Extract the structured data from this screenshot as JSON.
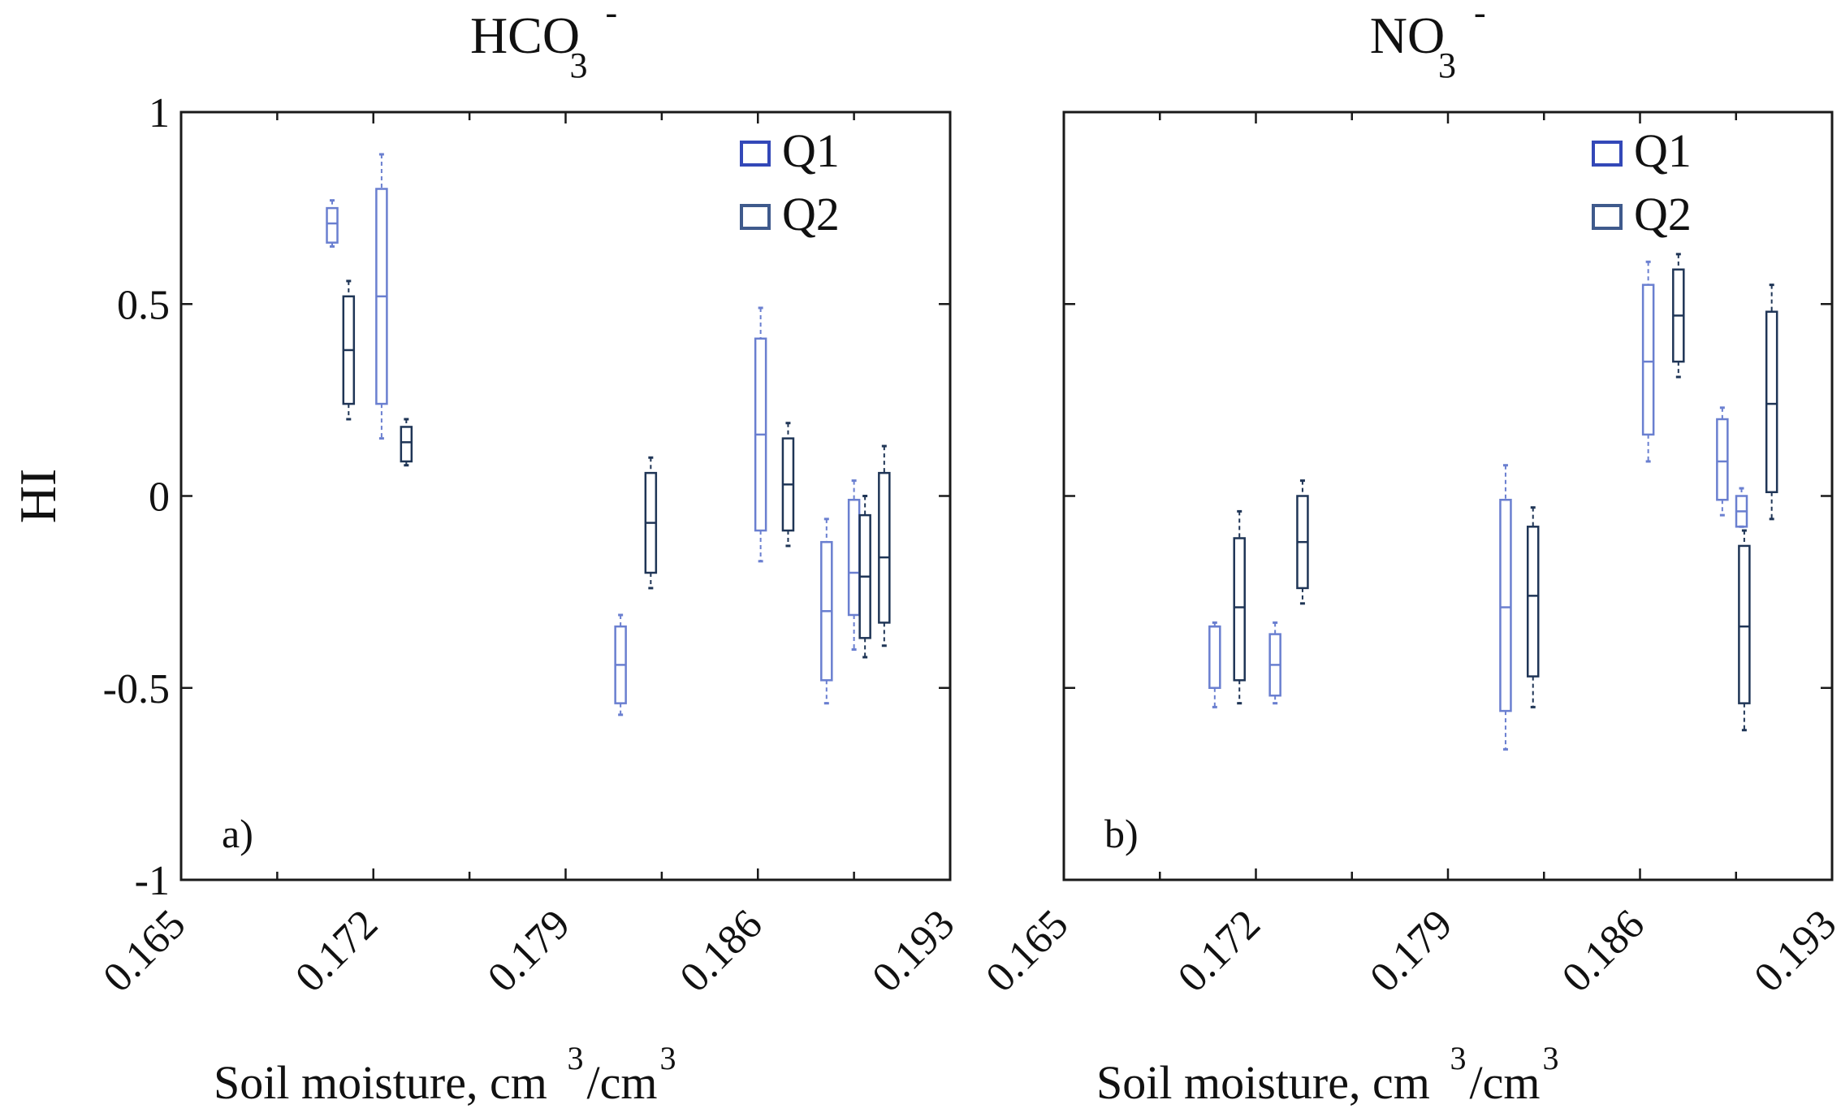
{
  "colors": {
    "Q1": "#6a7fd0",
    "Q2": "#1f3556",
    "axis": "#1a1a1a"
  },
  "chart_data": [
    {
      "type": "box",
      "panel_label": "a)",
      "title": {
        "main": "HCO",
        "sub": "3",
        "sup": "-"
      },
      "xlabel": {
        "text": "Soil moisture, cm",
        "sup1": "3",
        "mid": "/cm",
        "sup2": "3"
      },
      "ylabel": "HI",
      "xlim": [
        0.165,
        0.193
      ],
      "ylim": [
        -1,
        1
      ],
      "xticks": [
        "0.165",
        "0.172",
        "0.179",
        "0.186",
        "0.193"
      ],
      "yticks": [
        "1",
        "0.5",
        "0",
        "-0.5",
        "-1"
      ],
      "legend": [
        "Q1",
        "Q2"
      ],
      "boxes": [
        {
          "series": "Q1",
          "x": 0.1705,
          "whislo": 0.65,
          "q1": 0.66,
          "med": 0.71,
          "q3": 0.75,
          "whishi": 0.77
        },
        {
          "series": "Q2",
          "x": 0.1711,
          "whislo": 0.2,
          "q1": 0.24,
          "med": 0.38,
          "q3": 0.52,
          "whishi": 0.56
        },
        {
          "series": "Q1",
          "x": 0.1723,
          "whislo": 0.15,
          "q1": 0.24,
          "med": 0.52,
          "q3": 0.8,
          "whishi": 0.89
        },
        {
          "series": "Q2",
          "x": 0.1732,
          "whislo": 0.08,
          "q1": 0.09,
          "med": 0.14,
          "q3": 0.18,
          "whishi": 0.2
        },
        {
          "series": "Q1",
          "x": 0.181,
          "whislo": -0.57,
          "q1": -0.54,
          "med": -0.44,
          "q3": -0.34,
          "whishi": -0.31
        },
        {
          "series": "Q2",
          "x": 0.1821,
          "whislo": -0.24,
          "q1": -0.2,
          "med": -0.07,
          "q3": 0.06,
          "whishi": 0.1
        },
        {
          "series": "Q1",
          "x": 0.1861,
          "whislo": -0.17,
          "q1": -0.09,
          "med": 0.16,
          "q3": 0.41,
          "whishi": 0.49
        },
        {
          "series": "Q2",
          "x": 0.1871,
          "whislo": -0.13,
          "q1": -0.09,
          "med": 0.03,
          "q3": 0.15,
          "whishi": 0.19
        },
        {
          "series": "Q1",
          "x": 0.1885,
          "whislo": -0.54,
          "q1": -0.48,
          "med": -0.3,
          "q3": -0.12,
          "whishi": -0.06
        },
        {
          "series": "Q1",
          "x": 0.1895,
          "whislo": -0.4,
          "q1": -0.31,
          "med": -0.2,
          "q3": -0.01,
          "whishi": 0.04
        },
        {
          "series": "Q2",
          "x": 0.1899,
          "whislo": -0.42,
          "q1": -0.37,
          "med": -0.21,
          "q3": -0.05,
          "whishi": 0.0
        },
        {
          "series": "Q2",
          "x": 0.1906,
          "whislo": -0.39,
          "q1": -0.33,
          "med": -0.16,
          "q3": 0.06,
          "whishi": 0.13
        }
      ]
    },
    {
      "type": "box",
      "panel_label": "b)",
      "title": {
        "main": "NO",
        "sub": "3",
        "sup": "-"
      },
      "xlabel": {
        "text": "Soil moisture, cm",
        "sup1": "3",
        "mid": "/cm",
        "sup2": "3"
      },
      "ylabel": "",
      "xlim": [
        0.165,
        0.193
      ],
      "ylim": [
        -1,
        1
      ],
      "xticks": [
        "0.165",
        "0.172",
        "0.179",
        "0.186",
        "0.193"
      ],
      "yticks": [],
      "legend": [
        "Q1",
        "Q2"
      ],
      "boxes": [
        {
          "series": "Q1",
          "x": 0.1705,
          "whislo": -0.55,
          "q1": -0.5,
          "med": -0.34,
          "q3": -0.34,
          "whishi": -0.33
        },
        {
          "series": "Q2",
          "x": 0.1714,
          "whislo": -0.54,
          "q1": -0.48,
          "med": -0.29,
          "q3": -0.11,
          "whishi": -0.04
        },
        {
          "series": "Q1",
          "x": 0.1727,
          "whislo": -0.54,
          "q1": -0.52,
          "med": -0.44,
          "q3": -0.36,
          "whishi": -0.33
        },
        {
          "series": "Q2",
          "x": 0.1737,
          "whislo": -0.28,
          "q1": -0.24,
          "med": -0.12,
          "q3": 0.0,
          "whishi": 0.04
        },
        {
          "series": "Q1",
          "x": 0.1811,
          "whislo": -0.66,
          "q1": -0.56,
          "med": -0.29,
          "q3": -0.01,
          "whishi": 0.08
        },
        {
          "series": "Q2",
          "x": 0.1821,
          "whislo": -0.55,
          "q1": -0.47,
          "med": -0.26,
          "q3": -0.08,
          "whishi": -0.03
        },
        {
          "series": "Q1",
          "x": 0.1863,
          "whislo": 0.09,
          "q1": 0.16,
          "med": 0.35,
          "q3": 0.55,
          "whishi": 0.61
        },
        {
          "series": "Q2",
          "x": 0.1874,
          "whislo": 0.31,
          "q1": 0.35,
          "med": 0.47,
          "q3": 0.59,
          "whishi": 0.63
        },
        {
          "series": "Q1",
          "x": 0.189,
          "whislo": -0.05,
          "q1": -0.01,
          "med": 0.09,
          "q3": 0.2,
          "whishi": 0.23
        },
        {
          "series": "Q1",
          "x": 0.1897,
          "whislo": -0.08,
          "q1": -0.08,
          "med": -0.04,
          "q3": 0.0,
          "whishi": 0.02
        },
        {
          "series": "Q2",
          "x": 0.1898,
          "whislo": -0.61,
          "q1": -0.54,
          "med": -0.34,
          "q3": -0.13,
          "whishi": -0.09
        },
        {
          "series": "Q2",
          "x": 0.1908,
          "whislo": -0.06,
          "q1": 0.01,
          "med": 0.24,
          "q3": 0.48,
          "whishi": 0.55
        }
      ]
    }
  ]
}
